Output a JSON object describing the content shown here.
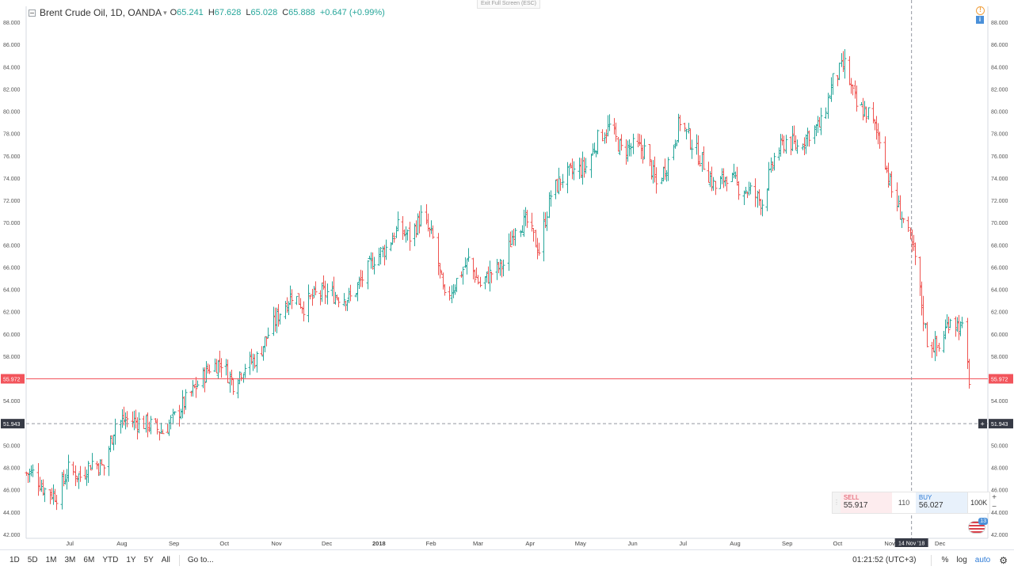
{
  "legend": {
    "symbol": "Brent Crude Oil, 1D, OANDA",
    "open_label": "O",
    "open": "65.241",
    "high_label": "H",
    "high": "67.628",
    "low_label": "L",
    "low": "65.028",
    "close_label": "C",
    "close": "65.888",
    "change": "+0.647 (+0.99%)"
  },
  "fullscreen_tip": "Exit Full Screen (ESC)",
  "price_axis": {
    "ticks": [
      "88.000",
      "86.000",
      "84.000",
      "82.000",
      "80.000",
      "78.000",
      "76.000",
      "74.000",
      "72.000",
      "70.000",
      "68.000",
      "66.000",
      "64.000",
      "62.000",
      "60.000",
      "58.000",
      "56.000",
      "54.000",
      "52.000",
      "50.000",
      "48.000",
      "46.000",
      "44.000",
      "42.000"
    ],
    "last_price_label": "55.972",
    "crosshair_label": "51.943"
  },
  "time_axis": {
    "ticks": [
      "Jul",
      "Aug",
      "Sep",
      "Oct",
      "Nov",
      "Dec",
      "2018",
      "Feb",
      "Mar",
      "Apr",
      "May",
      "Jun",
      "Jul",
      "Aug",
      "Sep",
      "Oct",
      "Nov",
      "Dec"
    ],
    "crosshair_label": "14 Nov '18"
  },
  "trade_panel": {
    "sell_label": "SELL",
    "sell_price": "55.917",
    "spread": "110",
    "buy_label": "BUY",
    "buy_price": "56.027",
    "quantity": "100K"
  },
  "flag_badge_count": "13",
  "toolbar": {
    "ranges": [
      "1D",
      "5D",
      "1M",
      "3M",
      "6M",
      "YTD",
      "1Y",
      "5Y",
      "All"
    ],
    "goto": "Go to...",
    "clock": "01:21:52 (UTC+3)",
    "percent": "%",
    "log": "log",
    "auto": "auto"
  },
  "colors": {
    "up": "#26a69a",
    "down": "#ef5350",
    "last_price": "#f2545b",
    "crosshair": "#9598a1",
    "crosshair_label_bg": "#363a45"
  },
  "chart_data": {
    "type": "ohlc",
    "title": "Brent Crude Oil, 1D, OANDA",
    "ylim": [
      42,
      88
    ],
    "last_price": 55.972,
    "crosshair_price": 51.943,
    "crosshair_date": "14 Nov '18",
    "x_months": [
      "2017-06",
      "2017-07",
      "2017-08",
      "2017-09",
      "2017-10",
      "2017-11",
      "2017-12",
      "2018-01",
      "2018-02",
      "2018-03",
      "2018-04",
      "2018-05",
      "2018-06",
      "2018-07",
      "2018-08",
      "2018-09",
      "2018-10",
      "2018-11",
      "2018-12"
    ],
    "weekly_close": [
      {
        "date": "2017-06-09",
        "close": 47.5
      },
      {
        "date": "2017-06-16",
        "close": 46.0
      },
      {
        "date": "2017-06-23",
        "close": 45.5
      },
      {
        "date": "2017-06-30",
        "close": 47.8
      },
      {
        "date": "2017-07-07",
        "close": 47.2
      },
      {
        "date": "2017-07-14",
        "close": 48.5
      },
      {
        "date": "2017-07-21",
        "close": 48.0
      },
      {
        "date": "2017-07-28",
        "close": 52.0
      },
      {
        "date": "2017-08-04",
        "close": 52.3
      },
      {
        "date": "2017-08-11",
        "close": 52.1
      },
      {
        "date": "2017-08-18",
        "close": 51.8
      },
      {
        "date": "2017-08-25",
        "close": 51.2
      },
      {
        "date": "2017-09-01",
        "close": 52.5
      },
      {
        "date": "2017-09-08",
        "close": 54.0
      },
      {
        "date": "2017-09-15",
        "close": 55.5
      },
      {
        "date": "2017-09-22",
        "close": 57.0
      },
      {
        "date": "2017-09-29",
        "close": 57.5
      },
      {
        "date": "2017-10-06",
        "close": 55.6
      },
      {
        "date": "2017-10-13",
        "close": 57.2
      },
      {
        "date": "2017-10-20",
        "close": 57.8
      },
      {
        "date": "2017-10-27",
        "close": 60.0
      },
      {
        "date": "2017-11-03",
        "close": 62.0
      },
      {
        "date": "2017-11-10",
        "close": 63.6
      },
      {
        "date": "2017-11-17",
        "close": 62.5
      },
      {
        "date": "2017-11-24",
        "close": 63.5
      },
      {
        "date": "2017-12-01",
        "close": 63.7
      },
      {
        "date": "2017-12-08",
        "close": 63.4
      },
      {
        "date": "2017-12-15",
        "close": 63.2
      },
      {
        "date": "2017-12-22",
        "close": 65.0
      },
      {
        "date": "2017-12-29",
        "close": 66.8
      },
      {
        "date": "2018-01-05",
        "close": 67.7
      },
      {
        "date": "2018-01-12",
        "close": 69.5
      },
      {
        "date": "2018-01-19",
        "close": 68.7
      },
      {
        "date": "2018-01-26",
        "close": 70.5
      },
      {
        "date": "2018-02-02",
        "close": 68.5
      },
      {
        "date": "2018-02-09",
        "close": 63.0
      },
      {
        "date": "2018-02-16",
        "close": 64.8
      },
      {
        "date": "2018-02-23",
        "close": 66.6
      },
      {
        "date": "2018-03-02",
        "close": 64.4
      },
      {
        "date": "2018-03-09",
        "close": 65.5
      },
      {
        "date": "2018-03-16",
        "close": 66.2
      },
      {
        "date": "2018-03-23",
        "close": 69.8
      },
      {
        "date": "2018-03-30",
        "close": 70.0
      },
      {
        "date": "2018-04-06",
        "close": 67.5
      },
      {
        "date": "2018-04-13",
        "close": 72.5
      },
      {
        "date": "2018-04-20",
        "close": 74.0
      },
      {
        "date": "2018-04-27",
        "close": 74.6
      },
      {
        "date": "2018-05-04",
        "close": 75.0
      },
      {
        "date": "2018-05-11",
        "close": 77.5
      },
      {
        "date": "2018-05-18",
        "close": 78.6
      },
      {
        "date": "2018-05-25",
        "close": 76.5
      },
      {
        "date": "2018-06-01",
        "close": 76.8
      },
      {
        "date": "2018-06-08",
        "close": 76.5
      },
      {
        "date": "2018-06-15",
        "close": 73.4
      },
      {
        "date": "2018-06-22",
        "close": 75.5
      },
      {
        "date": "2018-06-29",
        "close": 79.2
      },
      {
        "date": "2018-07-06",
        "close": 77.1
      },
      {
        "date": "2018-07-13",
        "close": 75.3
      },
      {
        "date": "2018-07-20",
        "close": 73.1
      },
      {
        "date": "2018-07-27",
        "close": 74.3
      },
      {
        "date": "2018-08-03",
        "close": 73.2
      },
      {
        "date": "2018-08-10",
        "close": 72.8
      },
      {
        "date": "2018-08-17",
        "close": 71.8
      },
      {
        "date": "2018-08-24",
        "close": 75.8
      },
      {
        "date": "2018-08-31",
        "close": 77.4
      },
      {
        "date": "2018-09-07",
        "close": 76.8
      },
      {
        "date": "2018-09-14",
        "close": 78.1
      },
      {
        "date": "2018-09-21",
        "close": 78.8
      },
      {
        "date": "2018-09-28",
        "close": 82.7
      },
      {
        "date": "2018-10-05",
        "close": 84.2
      },
      {
        "date": "2018-10-12",
        "close": 80.4
      },
      {
        "date": "2018-10-19",
        "close": 79.8
      },
      {
        "date": "2018-10-26",
        "close": 77.6
      },
      {
        "date": "2018-11-02",
        "close": 72.8
      },
      {
        "date": "2018-11-09",
        "close": 70.2
      },
      {
        "date": "2018-11-16",
        "close": 66.8
      },
      {
        "date": "2018-11-23",
        "close": 59.4
      },
      {
        "date": "2018-11-30",
        "close": 58.7
      },
      {
        "date": "2018-12-07",
        "close": 61.6
      },
      {
        "date": "2018-12-14",
        "close": 60.3
      },
      {
        "date": "2018-12-18",
        "close": 55.97
      }
    ]
  }
}
